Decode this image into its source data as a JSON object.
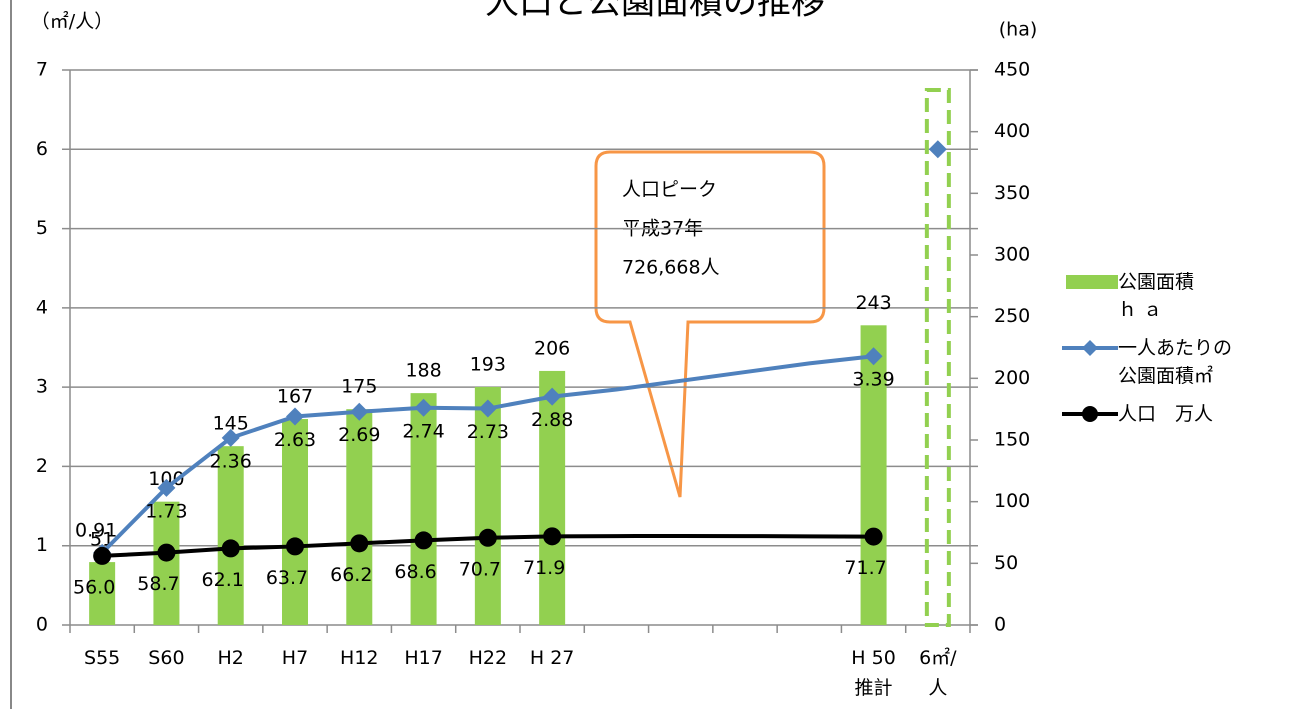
{
  "chart_data": {
    "type": "bar-line",
    "title": "人口と公園面積の推移",
    "y_label": "（㎡/人）",
    "y2_label": "(ha)",
    "categories": [
      "S55",
      "S60",
      "H2",
      "H7",
      "H12",
      "H17",
      "H22",
      "H 27",
      null,
      null,
      null,
      null,
      "H 50\n推計",
      "6㎡/\n人"
    ],
    "ylim": [
      0,
      7
    ],
    "yticks": [
      0,
      1,
      2,
      3,
      4,
      5,
      6,
      7
    ],
    "y2lim": [
      0,
      450
    ],
    "y2ticks": [
      0,
      50,
      100,
      150,
      200,
      250,
      300,
      350,
      400,
      450
    ],
    "grid": true,
    "series": [
      {
        "name": "公園面積\nｈ ａ",
        "type": "bar",
        "axis": "y2",
        "color": "#92d050",
        "values": [
          51,
          100,
          145,
          167,
          175,
          188,
          193,
          206,
          null,
          null,
          null,
          null,
          243,
          null
        ]
      },
      {
        "name": "一人あたりの\n公園面積㎡",
        "type": "line",
        "color": "#4f81bd",
        "values": [
          0.91,
          1.73,
          2.36,
          2.63,
          2.69,
          2.74,
          2.73,
          2.88,
          2.97,
          3.08,
          3.19,
          3.3,
          3.39,
          null
        ]
      },
      {
        "name": "人口　万人",
        "type": "line",
        "axis": "y2",
        "color": "#000000",
        "values": [
          56.0,
          58.7,
          62.1,
          63.7,
          66.2,
          68.6,
          70.7,
          71.9,
          72.1,
          72.2,
          72.1,
          71.9,
          71.7,
          null
        ],
        "value_labels": [
          "56.0",
          "58.7",
          "62.1",
          "63.7",
          "66.2",
          "68.6",
          "70.7",
          "71.9",
          null,
          null,
          null,
          null,
          "71.7",
          null
        ]
      }
    ],
    "target": {
      "value": 6,
      "color": "#4f81bd"
    },
    "callout": [
      "人口ピーク",
      "平成37年",
      "726,668人"
    ]
  }
}
